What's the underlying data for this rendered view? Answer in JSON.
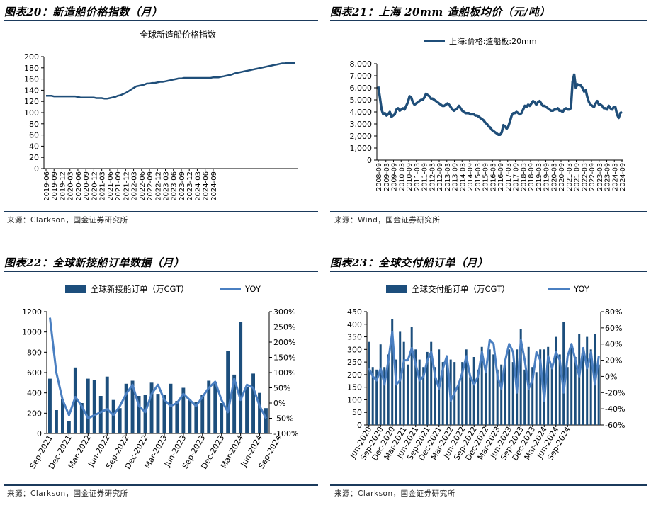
{
  "panels": [
    {
      "title": "图表20：新造船价格指数（月）",
      "source": "来源：Clarkson，国金证券研究所"
    },
    {
      "title": "图表21：上海 20mm 造船板均价（元/吨）",
      "source": "来源：Wind，国金证券研究所"
    },
    {
      "title": "图表22：全球新接船订单数据（月）",
      "source": "来源：Clarkson，国金证券研究所"
    },
    {
      "title": "图表23：全球交付船订单（月）",
      "source": "来源：Clarkson，国金证券研究所"
    }
  ],
  "colors": {
    "navy": "#1b3a5c",
    "bar": "#1c4e7c",
    "yoy": "#4a7fc1",
    "line": "#1f4e79",
    "rule": "#1b3a5c"
  },
  "chart_data": [
    {
      "type": "line",
      "title": "全球新造船价格指数",
      "series": [
        {
          "name": "全球新造船价格指数",
          "values": [
            130,
            130,
            130,
            129,
            129,
            129,
            129,
            129,
            129,
            129,
            129,
            129,
            128,
            127,
            127,
            127,
            127,
            127,
            127,
            126,
            126,
            126,
            125,
            125,
            126,
            127,
            128,
            130,
            131,
            133,
            135,
            138,
            141,
            144,
            147,
            148,
            149,
            150,
            152,
            152,
            153,
            153,
            154,
            155,
            155,
            156,
            157,
            158,
            159,
            160,
            161,
            161,
            162,
            162,
            162,
            162,
            162,
            162,
            162,
            162,
            162,
            162,
            162,
            163,
            163,
            163,
            164,
            165,
            166,
            167,
            168,
            170,
            171,
            172,
            173,
            174,
            175,
            176,
            177,
            178,
            179,
            180,
            181,
            182,
            183,
            184,
            185,
            186,
            187,
            188,
            188,
            189,
            189,
            189,
            189
          ]
        }
      ],
      "x_start": "2019-06",
      "tick_labels": [
        "2019-06",
        "2019-09",
        "2019-12",
        "2020-03",
        "2020-06",
        "2020-09",
        "2020-12",
        "2021-03",
        "2021-06",
        "2021-09",
        "2021-12",
        "2022-03",
        "2022-06",
        "2022-09",
        "2022-12",
        "2023-03",
        "2023-06",
        "2023-09",
        "2023-12",
        "2024-03",
        "2024-06",
        "2024-09"
      ],
      "ylim": [
        0,
        200
      ],
      "yticks": [
        0,
        20,
        40,
        60,
        80,
        100,
        120,
        140,
        160,
        180,
        200
      ],
      "grid": false
    },
    {
      "type": "line",
      "series": [
        {
          "name": "上海:价格:造船板:20mm",
          "values": [
            6100,
            5200,
            4200,
            3800,
            3900,
            3700,
            3800,
            4000,
            3600,
            3700,
            3800,
            4200,
            4300,
            4100,
            4200,
            4300,
            4200,
            4500,
            4800,
            5300,
            5200,
            4800,
            4600,
            4700,
            4800,
            4900,
            5000,
            5000,
            5200,
            5500,
            5400,
            5300,
            5100,
            5100,
            5000,
            4900,
            4800,
            4700,
            4600,
            4500,
            4500,
            4600,
            4700,
            4600,
            4400,
            4200,
            4100,
            4200,
            4300,
            4500,
            4300,
            4100,
            4000,
            3900,
            3900,
            3900,
            3800,
            3800,
            3800,
            3700,
            3700,
            3600,
            3500,
            3400,
            3300,
            3100,
            3000,
            2800,
            2700,
            2500,
            2400,
            2300,
            2200,
            2100,
            2100,
            2300,
            2900,
            2800,
            2600,
            2800,
            3200,
            3700,
            3900,
            3900,
            4000,
            3900,
            3800,
            3900,
            4200,
            4500,
            4400,
            4600,
            4500,
            4700,
            4900,
            4800,
            4600,
            4800,
            4900,
            4700,
            4500,
            4500,
            4400,
            4300,
            4200,
            4100,
            4100,
            4200,
            4200,
            4300,
            4100,
            4100,
            4000,
            4200,
            4300,
            4200,
            4200,
            4300,
            6500,
            7100,
            6000,
            6300,
            6200,
            6200,
            6000,
            5700,
            5800,
            5200,
            4800,
            4600,
            4500,
            4400,
            4700,
            4900,
            4600,
            4600,
            4500,
            4300,
            4300,
            4200,
            4500,
            4300,
            4200,
            4400,
            4400,
            3800,
            3500,
            3900,
            4000
          ]
        }
      ],
      "x_start": "2008-09",
      "tick_labels": [
        "2008-09",
        "2009-03",
        "2009-09",
        "2010-03",
        "2010-09",
        "2011-03",
        "2011-09",
        "2012-03",
        "2012-09",
        "2013-03",
        "2013-09",
        "2014-03",
        "2014-09",
        "2015-03",
        "2015-09",
        "2016-03",
        "2016-09",
        "2017-03",
        "2017-09",
        "2018-03",
        "2018-09",
        "2019-03",
        "2019-09",
        "2020-03",
        "2020-09",
        "2021-03",
        "2021-09",
        "2022-03",
        "2022-09",
        "2023-03",
        "2023-09",
        "2024-03",
        "2024-09"
      ],
      "ylim": [
        0,
        8000
      ],
      "yticks": [
        "0",
        "1,000",
        "2,000",
        "3,000",
        "4,000",
        "5,000",
        "6,000",
        "7,000",
        "8,000"
      ],
      "grid": false,
      "legend": "top"
    },
    {
      "type": "bar",
      "series": [
        {
          "name": "全球新接船订单（万CGT）",
          "values": [
            540,
            230,
            340,
            120,
            650,
            300,
            540,
            530,
            370,
            560,
            330,
            250,
            490,
            520,
            370,
            380,
            500,
            390,
            380,
            490,
            320,
            450,
            330,
            310,
            380,
            520,
            510,
            300,
            810,
            580,
            1100,
            460,
            590,
            400,
            250
          ]
        },
        {
          "name": "YOY",
          "values": [
            280,
            100,
            10,
            -40,
            20,
            -10,
            -50,
            -40,
            -30,
            -20,
            -40,
            -10,
            30,
            60,
            -10,
            -30,
            30,
            60,
            10,
            -10,
            0,
            30,
            10,
            -10,
            20,
            50,
            70,
            10,
            -30,
            80,
            10,
            60,
            50,
            -10,
            -50
          ]
        }
      ],
      "x_start": "Sep-2021",
      "tick_labels": [
        "Sep-2021",
        "Dec-2021",
        "Mar-2022",
        "Jun-2022",
        "Sep-2022",
        "Dec-2022",
        "Mar-2023",
        "Jun-2023",
        "Sep-2023",
        "Dec-2023",
        "Mar-2024",
        "Jun-2024",
        "Sep-2024"
      ],
      "ylim_left": [
        0,
        1200
      ],
      "ylim_right": [
        -100,
        300
      ],
      "yticks_left": [
        0,
        200,
        400,
        600,
        800,
        1000,
        1200
      ],
      "yticks_right": [
        "-100%",
        "-50%",
        "0%",
        "50%",
        "100%",
        "150%",
        "200%",
        "250%",
        "300%"
      ],
      "legend": "top",
      "grid": false
    },
    {
      "type": "bar",
      "series": [
        {
          "name": "全球交付船订单（万CGT）",
          "values": [
            330,
            230,
            220,
            320,
            230,
            280,
            420,
            260,
            370,
            330,
            240,
            390,
            300,
            260,
            230,
            290,
            330,
            230,
            300,
            250,
            270,
            260,
            250,
            160,
            250,
            300,
            190,
            270,
            220,
            310,
            210,
            300,
            280,
            220,
            240,
            250,
            300,
            250,
            300,
            380,
            220,
            310,
            230,
            210,
            300,
            300,
            310,
            240,
            350,
            280,
            410,
            230,
            310,
            270,
            360,
            300,
            350,
            300,
            360,
            240
          ]
        },
        {
          "name": "YOY",
          "values": [
            10,
            0,
            -5,
            10,
            -10,
            20,
            55,
            -10,
            -5,
            20,
            20,
            35,
            15,
            -5,
            0,
            20,
            30,
            0,
            -15,
            10,
            25,
            -30,
            -20,
            -10,
            5,
            25,
            0,
            -10,
            0,
            30,
            5,
            45,
            40,
            0,
            -15,
            20,
            40,
            30,
            -20,
            45,
            20,
            -15,
            -5,
            30,
            20,
            -30,
            25,
            10,
            30,
            20,
            -20,
            25,
            40,
            20,
            0,
            35,
            10,
            30,
            -10,
            25
          ]
        }
      ],
      "x_start": "Jun-2020",
      "tick_labels": [
        "Jun-2020",
        "Sep-2020",
        "Dec-2020",
        "Mar-2021",
        "Jun-2021",
        "Sep-2021",
        "Dec-2021",
        "Mar-2022",
        "Jun-2022",
        "Sep-2022",
        "Dec-2022",
        "Mar-2023",
        "Jun-2023",
        "Sep-2023",
        "Dec-2023",
        "Mar-2024",
        "Jun-2024",
        "Sep-2024"
      ],
      "ylim_left": [
        0,
        450
      ],
      "ylim_right": [
        -60,
        80
      ],
      "yticks_left": [
        0,
        50,
        100,
        150,
        200,
        250,
        300,
        350,
        400,
        450
      ],
      "yticks_right": [
        "-60%",
        "-40%",
        "-20%",
        "0%",
        "20%",
        "40%",
        "60%",
        "80%"
      ],
      "legend": "top",
      "grid": false
    }
  ]
}
